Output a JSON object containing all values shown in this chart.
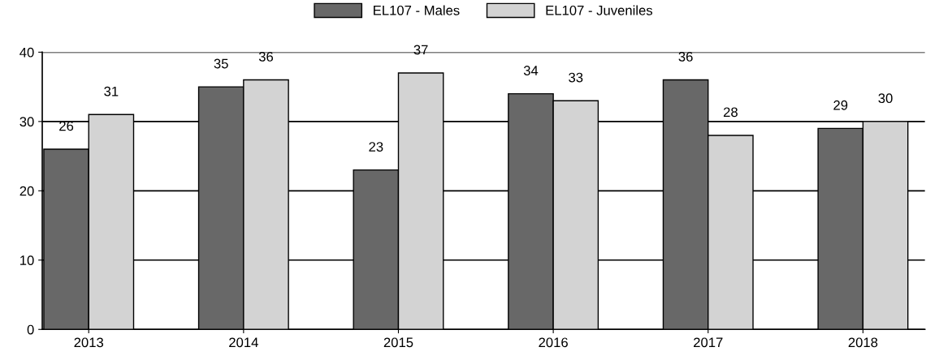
{
  "chart_data": {
    "type": "bar",
    "categories": [
      "2013",
      "2014",
      "2015",
      "2016",
      "2017",
      "2018"
    ],
    "series": [
      {
        "name": "EL107 - Males",
        "color": "#686868",
        "values": [
          26,
          35,
          23,
          34,
          36,
          29
        ]
      },
      {
        "name": "EL107 - Juveniles",
        "color": "#d3d3d3",
        "values": [
          31,
          36,
          37,
          33,
          28,
          30
        ]
      }
    ],
    "ylim": [
      0,
      40
    ],
    "yticks": [
      0,
      10,
      20,
      30,
      40
    ],
    "grid": "y",
    "legend": "top",
    "data_labels": true
  }
}
